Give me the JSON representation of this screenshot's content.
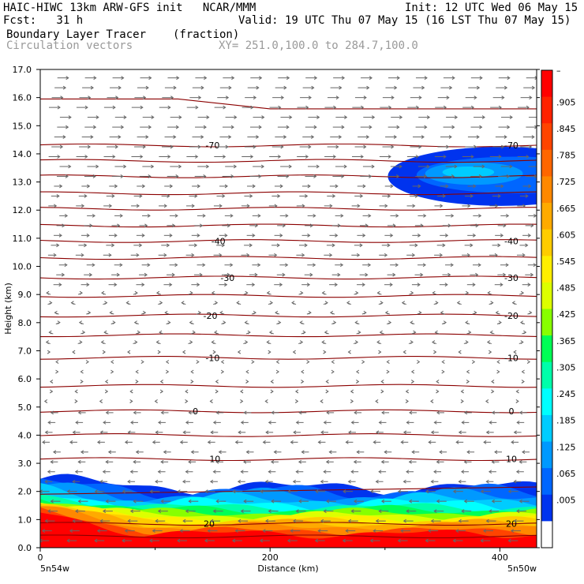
{
  "header": {
    "title": "HAIC-HIWC 13km ARW-GFS init   NCAR/MMM",
    "init": "Init: 12 UTC Wed 06 May 15",
    "fcst": "Fcst:   31 h",
    "valid": "Valid: 19 UTC Thu 07 May 15 (16 LST Thu 07 May 15)",
    "field": "Boundary Layer Tracer",
    "units": "(fraction)",
    "vectors": "Circulation vectors",
    "xy": "XY= 251.0,100.0 to 284.7,100.0"
  },
  "chart_data": {
    "type": "heatmap",
    "title": "Boundary Layer Tracer",
    "units": "(fraction)",
    "xlabel": "Distance (km)",
    "ylabel": "Height (km)",
    "xlim": [
      0,
      432
    ],
    "ylim": [
      0,
      17
    ],
    "x_ticks": [
      "0",
      "200",
      "400"
    ],
    "y_ticks": [
      "0.0",
      "1.0",
      "2.0",
      "3.0",
      "4.0",
      "5.0",
      "6.0",
      "7.0",
      "8.0",
      "9.0",
      "10.0",
      "11.0",
      "12.0",
      "13.0",
      "14.0",
      "15.0",
      "16.0",
      "17.0"
    ],
    "x_endpoints": {
      "left": "5n54w",
      "right": "5n50w"
    },
    "colorbar": {
      "labels": [
        "–",
        ".905",
        ".845",
        ".785",
        ".725",
        ".665",
        ".605",
        ".545",
        ".485",
        ".425",
        ".365",
        ".305",
        ".245",
        ".185",
        ".125",
        ".065",
        ".005"
      ],
      "colors": [
        "#ff0000",
        "#ff2200",
        "#ff4400",
        "#ff6600",
        "#ff8800",
        "#ffaa00",
        "#ffcc00",
        "#ffee00",
        "#ddff00",
        "#88ff00",
        "#00ff55",
        "#00ffaa",
        "#00ffff",
        "#00ccff",
        "#0099ff",
        "#0066ff",
        "#0033ee",
        "#ffffff"
      ]
    },
    "isotherms": [
      {
        "height_km": 15.95,
        "label": "",
        "label_positions": []
      },
      {
        "height_km": 14.3,
        "label": "-70",
        "label_positions": [
          150,
          410
        ]
      },
      {
        "height_km": 13.75,
        "label": "",
        "label_positions": []
      },
      {
        "height_km": 13.2,
        "label": "",
        "label_positions": []
      },
      {
        "height_km": 12.6,
        "label": "",
        "label_positions": []
      },
      {
        "height_km": 12.05,
        "label": "",
        "label_positions": []
      },
      {
        "height_km": 11.45,
        "label": "",
        "label_positions": []
      },
      {
        "height_km": 10.9,
        "label": "-40",
        "label_positions": [
          155,
          410
        ]
      },
      {
        "height_km": 10.3,
        "label": "",
        "label_positions": []
      },
      {
        "height_km": 9.6,
        "label": "-30",
        "label_positions": [
          163,
          410
        ]
      },
      {
        "height_km": 8.95,
        "label": "",
        "label_positions": []
      },
      {
        "height_km": 8.25,
        "label": "-20",
        "label_positions": [
          148,
          410
        ]
      },
      {
        "height_km": 7.55,
        "label": "",
        "label_positions": []
      },
      {
        "height_km": 6.75,
        "label": "-10",
        "label_positions": [
          150,
          410
        ]
      },
      {
        "height_km": 5.75,
        "label": "",
        "label_positions": []
      },
      {
        "height_km": 4.85,
        "label": "0",
        "label_positions": [
          135,
          410
        ]
      },
      {
        "height_km": 4.0,
        "label": "",
        "label_positions": []
      },
      {
        "height_km": 3.15,
        "label": "10",
        "label_positions": [
          152,
          410
        ]
      },
      {
        "height_km": 2.0,
        "label": "",
        "label_positions": []
      },
      {
        "height_km": 0.85,
        "label": "20",
        "label_positions": [
          147,
          410
        ]
      },
      {
        "height_km": 0.4,
        "label": "",
        "label_positions": []
      }
    ],
    "tracer_regions": [
      {
        "name": "boundary layer",
        "x_range_km": [
          0,
          432
        ],
        "top_km": [
          1.95,
          2.3
        ],
        "max_fraction": 1.0
      },
      {
        "name": "upper plume",
        "x_range_km": [
          305,
          432
        ],
        "height_range_km": [
          12.2,
          14.2
        ],
        "max_fraction": 0.15
      }
    ],
    "vector_flow": {
      "below_5km": "westward (right-to-left)",
      "above_9km": "eastward (left-to-right)",
      "between_5_and_9km": "weak, mixed"
    }
  }
}
